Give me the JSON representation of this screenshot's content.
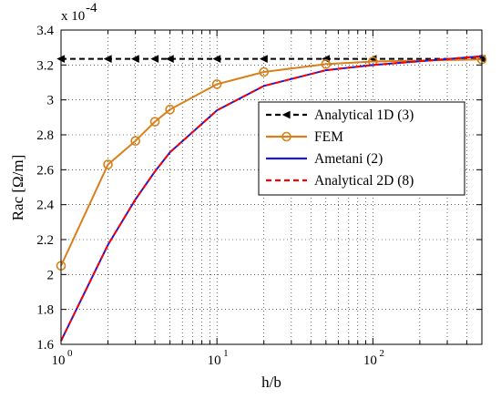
{
  "chart_data": {
    "type": "line",
    "xscale": "log",
    "xlabel": "h/b",
    "ylabel": "Rac [Ω/m]",
    "y_multiplier_label": "x 10",
    "y_multiplier_exponent": "-4",
    "xlim": [
      1,
      500
    ],
    "ylim": [
      1.6,
      3.4
    ],
    "x_ticks": [
      {
        "value": 1,
        "base": "10",
        "exp": "0"
      },
      {
        "value": 10,
        "base": "10",
        "exp": "1"
      },
      {
        "value": 100,
        "base": "10",
        "exp": "2"
      }
    ],
    "y_ticks": [
      1.6,
      1.8,
      2,
      2.2,
      2.4,
      2.6,
      2.8,
      3,
      3.2,
      3.4
    ],
    "y_tick_labels": [
      "1.6",
      "1.8",
      "2",
      "2.2",
      "2.4",
      "2.6",
      "2.8",
      "3",
      "3.2",
      "3.4"
    ],
    "grid": true,
    "legend_position": "right",
    "series": [
      {
        "name": "Analytical 1D (3)",
        "color": "#000000",
        "style": "dashed",
        "marker": "left-triangle",
        "x": [
          1,
          2,
          3,
          4,
          5,
          10,
          20,
          50,
          100,
          500
        ],
        "y": [
          3.235,
          3.235,
          3.235,
          3.235,
          3.235,
          3.235,
          3.235,
          3.235,
          3.235,
          3.235
        ]
      },
      {
        "name": "FEM",
        "color": "#d9801a",
        "style": "solid",
        "marker": "circle",
        "x": [
          1,
          2,
          3,
          4,
          5,
          10,
          20,
          50,
          100,
          500
        ],
        "y": [
          2.05,
          2.63,
          2.765,
          2.875,
          2.945,
          3.09,
          3.16,
          3.205,
          3.22,
          3.232
        ]
      },
      {
        "name": "Ametani (2)",
        "color": "#1a1ad6",
        "style": "solid",
        "marker": "none",
        "x": [
          1,
          2,
          3,
          4,
          5,
          10,
          20,
          50,
          100,
          500
        ],
        "y": [
          1.62,
          2.17,
          2.43,
          2.59,
          2.7,
          2.94,
          3.08,
          3.17,
          3.2,
          3.25
        ]
      },
      {
        "name": "Analytical 2D (8)",
        "color": "#ff0000",
        "style": "dashed",
        "marker": "none",
        "x": [
          1,
          2,
          3,
          4,
          5,
          10,
          20,
          50,
          100,
          500
        ],
        "y": [
          1.62,
          2.17,
          2.43,
          2.59,
          2.7,
          2.94,
          3.08,
          3.17,
          3.2,
          3.25
        ]
      }
    ]
  }
}
